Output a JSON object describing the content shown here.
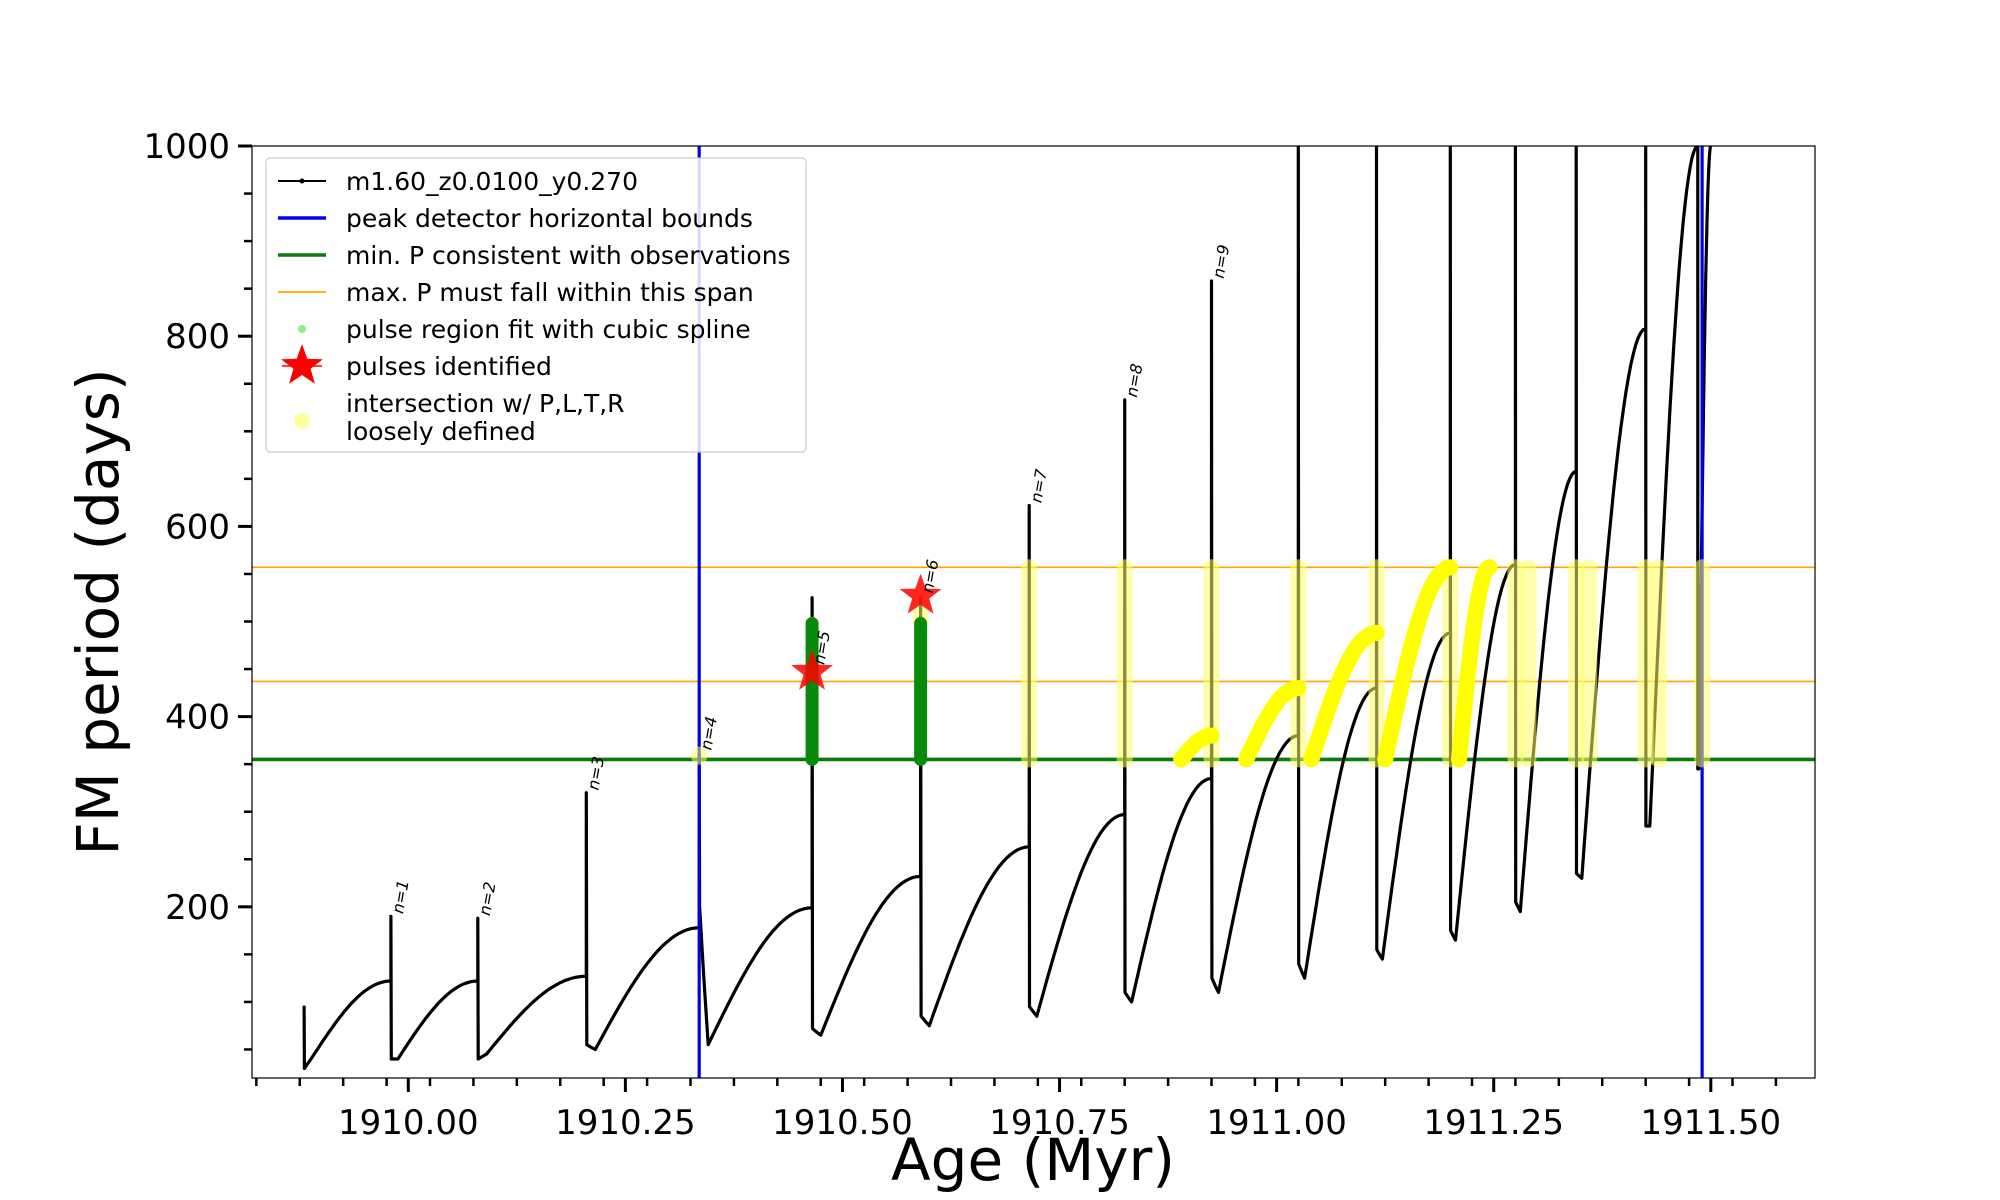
{
  "chart_data": {
    "type": "line",
    "title": "",
    "xlabel": "Age (Myr)",
    "ylabel": "FM period (days)",
    "xlim": [
      1909.82,
      1911.62
    ],
    "ylim": [
      20,
      1000
    ],
    "x_ticks": [
      1910.0,
      1910.25,
      1910.5,
      1910.75,
      1911.0,
      1911.25,
      1911.5
    ],
    "x_tick_labels": [
      "1910.00",
      "1910.25",
      "1910.50",
      "1910.75",
      "1911.00",
      "1911.25",
      "1911.50"
    ],
    "y_ticks": [
      200,
      400,
      600,
      800,
      1000
    ],
    "y_tick_labels": [
      "200",
      "400",
      "600",
      "800",
      "1000"
    ],
    "legend_position": "top-left",
    "legend": [
      {
        "label": "m1.60_z0.0100_y0.270",
        "color": "#000000",
        "marker": "line-dot"
      },
      {
        "label": "peak detector horizontal bounds",
        "color": "#0000ee",
        "marker": "line"
      },
      {
        "label": "min. P consistent with observations",
        "color": "#0a7a0a",
        "marker": "line"
      },
      {
        "label": "max. P must fall within this span",
        "color": "#ffa500",
        "marker": "thin-line"
      },
      {
        "label": "pulse region fit with cubic spline",
        "color": "#90ee90",
        "marker": "dot"
      },
      {
        "label": "pulses identified",
        "color": "#ff0000",
        "marker": "star"
      },
      {
        "label": "intersection w/ P,L,T,R\nloosely defined",
        "color": "#ffffa0",
        "marker": "circle"
      }
    ],
    "vertical_bounds": [
      1910.335,
      1911.49
    ],
    "min_period": 355,
    "max_period_span": [
      437,
      557
    ],
    "series": [
      {
        "name": "m1.60_z0.0100_y0.270",
        "color": "#000000",
        "pulses": [
          {
            "start": 1909.88,
            "base_start": 30,
            "dip": 40,
            "pre_peak": 122,
            "peak": 96
          },
          {
            "start": 1909.98,
            "base_start": 40,
            "dip": 40,
            "pre_peak": 122,
            "peak": 190
          },
          {
            "start": 1910.08,
            "base_start": 40,
            "dip": 45,
            "pre_peak": 127,
            "peak": 188
          },
          {
            "start": 1910.205,
            "base_start": 55,
            "dip": 50,
            "pre_peak": 178,
            "peak": 320
          },
          {
            "start": 1910.335,
            "base_start": 200,
            "dip": 55,
            "pre_peak": 199,
            "peak": 362
          },
          {
            "start": 1910.465,
            "base_start": 72,
            "dip": 65,
            "pre_peak": 232,
            "peak": 525
          },
          {
            "start": 1910.59,
            "base_start": 85,
            "dip": 75,
            "pre_peak": 263,
            "peak": 525
          },
          {
            "start": 1910.715,
            "base_start": 95,
            "dip": 85,
            "pre_peak": 297,
            "peak": 622
          },
          {
            "start": 1910.825,
            "base_start": 110,
            "dip": 100,
            "pre_peak": 335,
            "peak": 733
          },
          {
            "start": 1910.925,
            "base_start": 125,
            "dip": 110,
            "pre_peak": 380,
            "peak": 858
          },
          {
            "start": 1911.025,
            "base_start": 140,
            "dip": 125,
            "pre_peak": 430,
            "peak": 1000
          },
          {
            "start": 1911.115,
            "base_start": 155,
            "dip": 145,
            "pre_peak": 488,
            "peak": 1000
          },
          {
            "start": 1911.2,
            "base_start": 175,
            "dip": 165,
            "pre_peak": 560,
            "peak": 1000
          },
          {
            "start": 1911.275,
            "base_start": 205,
            "dip": 195,
            "pre_peak": 658,
            "peak": 1000
          },
          {
            "start": 1911.345,
            "base_start": 235,
            "dip": 230,
            "pre_peak": 808,
            "peak": 1000
          },
          {
            "start": 1911.425,
            "base_start": 285,
            "dip": 285,
            "pre_peak": 1000,
            "peak": 1000
          },
          {
            "start": 1911.485,
            "base_start": 345,
            "dip": 345,
            "pre_peak": 1000,
            "peak": 1000
          }
        ],
        "end_x": 1911.5
      }
    ],
    "spline_fits": [
      {
        "x": 1910.465,
        "y_range": [
          355,
          498
        ]
      },
      {
        "x": 1910.59,
        "y_range": [
          355,
          498
        ]
      }
    ],
    "pulses_identified": [
      {
        "x": 1910.465,
        "y": 447
      },
      {
        "x": 1910.59,
        "y": 527
      }
    ],
    "intersections": [
      {
        "x": 1910.335,
        "y_range": [
          358,
          360
        ]
      },
      {
        "x": 1910.59,
        "y_range": [
          500,
          530
        ]
      },
      {
        "x": 1910.715,
        "y_range": [
          355,
          557
        ]
      },
      {
        "x": 1910.825,
        "y_range": [
          355,
          557
        ]
      },
      {
        "x": 1910.925,
        "y_range": [
          355,
          557
        ]
      },
      {
        "x": 1911.025,
        "y_range": [
          355,
          557
        ]
      },
      {
        "x": 1911.115,
        "y_range": [
          355,
          557
        ]
      },
      {
        "x": 1911.2,
        "y_range": [
          355,
          557
        ]
      },
      {
        "x": 1911.275,
        "y_range": [
          355,
          557
        ]
      },
      {
        "x": 1911.29,
        "y_range": [
          355,
          557
        ]
      },
      {
        "x": 1911.345,
        "y_range": [
          355,
          557
        ]
      },
      {
        "x": 1911.36,
        "y_range": [
          355,
          557
        ]
      },
      {
        "x": 1911.425,
        "y_range": [
          355,
          557
        ]
      },
      {
        "x": 1911.44,
        "y_range": [
          355,
          557
        ]
      },
      {
        "x": 1911.49,
        "y_range": [
          355,
          557
        ]
      }
    ],
    "intersection_arcs": [
      {
        "x_from": 1910.89,
        "x_to": 1910.925,
        "y_from": 355,
        "y_to": 380
      },
      {
        "x_from": 1910.965,
        "x_to": 1911.025,
        "y_from": 355,
        "y_to": 430
      },
      {
        "x_from": 1911.04,
        "x_to": 1911.115,
        "y_from": 355,
        "y_to": 488
      },
      {
        "x_from": 1911.125,
        "x_to": 1911.2,
        "y_from": 355,
        "y_to": 557
      },
      {
        "x_from": 1911.21,
        "x_to": 1911.245,
        "y_from": 355,
        "y_to": 557
      }
    ],
    "annotations": [
      {
        "text": "n=1",
        "x": 1909.98,
        "y": 190
      },
      {
        "text": "n=2",
        "x": 1910.08,
        "y": 188
      },
      {
        "text": "n=3",
        "x": 1910.205,
        "y": 320
      },
      {
        "text": "n=4",
        "x": 1910.335,
        "y": 362
      },
      {
        "text": "n=5",
        "x": 1910.465,
        "y": 452
      },
      {
        "text": "n=6",
        "x": 1910.59,
        "y": 527
      },
      {
        "text": "n=7",
        "x": 1910.715,
        "y": 622
      },
      {
        "text": "n=8",
        "x": 1910.825,
        "y": 733
      },
      {
        "text": "n=9",
        "x": 1910.925,
        "y": 858
      }
    ]
  }
}
